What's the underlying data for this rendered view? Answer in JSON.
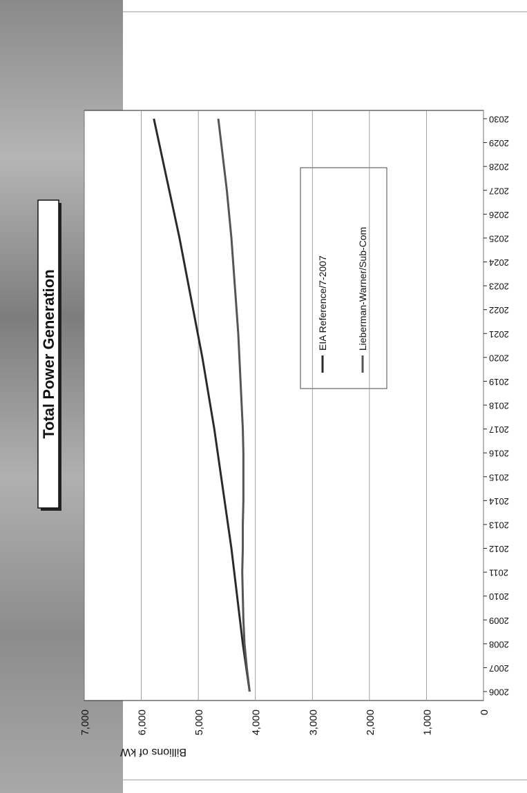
{
  "chart_data": {
    "type": "line",
    "title": "Total Power Generation",
    "y_label": "Billions of kW",
    "categories": [
      "2006",
      "2007",
      "2008",
      "2009",
      "2010",
      "2011",
      "2012",
      "2013",
      "2014",
      "2015",
      "2016",
      "2017",
      "2018",
      "2019",
      "2020",
      "2021",
      "2022",
      "2023",
      "2024",
      "2025",
      "2026",
      "2027",
      "2028",
      "2029",
      "2030"
    ],
    "series": [
      {
        "name": "EIA Reference/7-2007",
        "color": "#2a2a2a",
        "values": [
          4100,
          4160,
          4220,
          4270,
          4320,
          4370,
          4420,
          4480,
          4540,
          4600,
          4660,
          4720,
          4790,
          4860,
          4930,
          5010,
          5090,
          5170,
          5250,
          5330,
          5420,
          5510,
          5600,
          5690,
          5780
        ]
      },
      {
        "name": "Lieberman-Warner/Sub-Com",
        "color": "#555555",
        "values": [
          4100,
          4150,
          4190,
          4210,
          4220,
          4230,
          4220,
          4220,
          4210,
          4210,
          4210,
          4220,
          4240,
          4260,
          4280,
          4300,
          4330,
          4360,
          4390,
          4420,
          4460,
          4500,
          4550,
          4600,
          4650
        ]
      }
    ],
    "ylim": [
      0,
      7000
    ],
    "yticks": [
      0,
      {
        "value": 1000,
        "label": "1,000"
      },
      {
        "value": 2000,
        "label": "2,000"
      },
      {
        "value": 3000,
        "label": "3,000"
      },
      {
        "value": 4000,
        "label": "4,000"
      },
      {
        "value": 5000,
        "label": "5,000"
      },
      {
        "value": 6000,
        "label": "6,000"
      },
      {
        "value": 7000,
        "label": "7,000"
      }
    ],
    "grid": true
  }
}
